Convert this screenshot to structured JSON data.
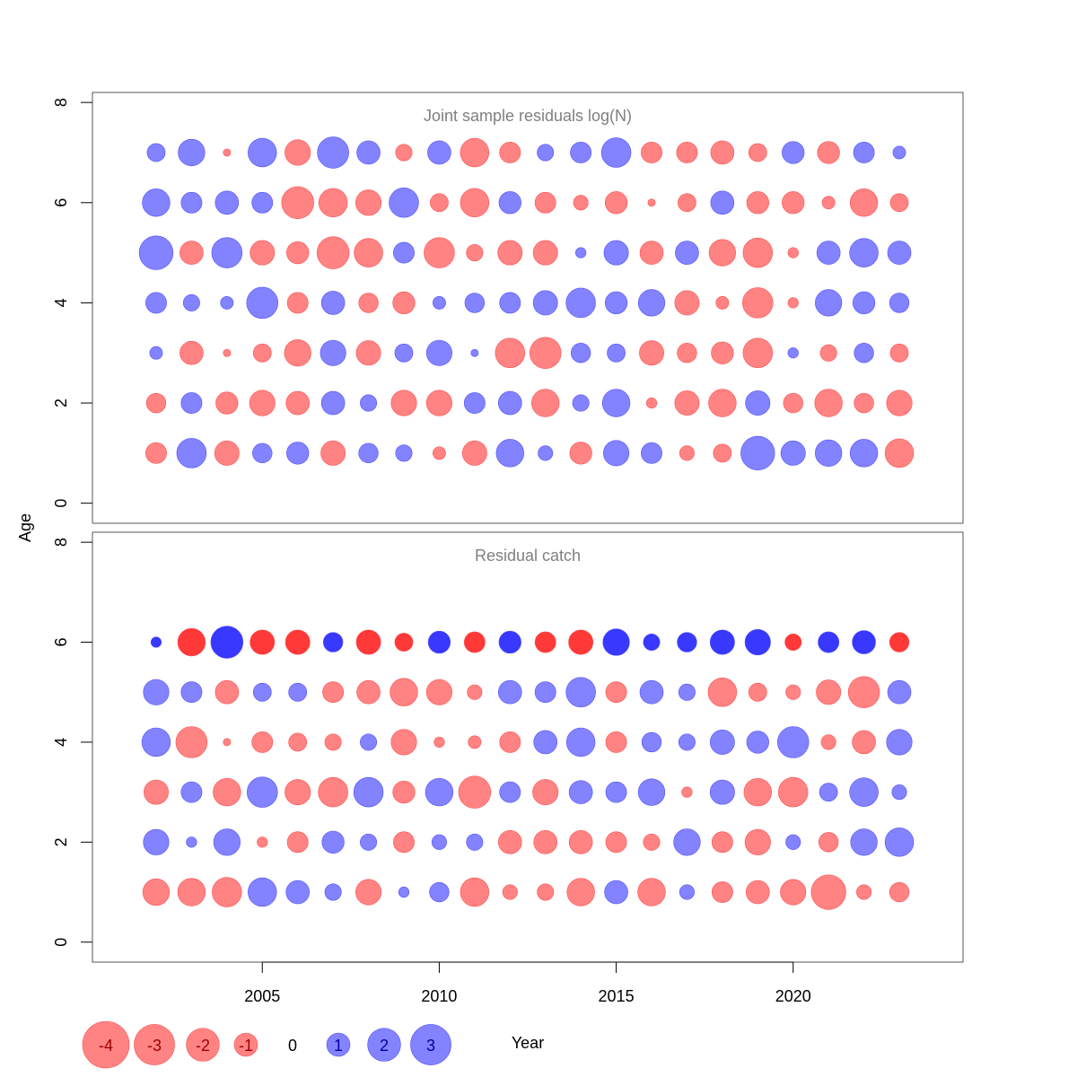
{
  "colors": {
    "negative": "#ff6464",
    "positive": "#6464ff",
    "negative_strong": "#ff2d2d",
    "positive_strong": "#2d2dff"
  },
  "chart_data": {
    "type": "scatter",
    "xlabel": "Year",
    "ylabel": "Age",
    "xlim": [
      2000.2,
      2024.8
    ],
    "x_ticks": [
      2005,
      2010,
      2015,
      2020
    ],
    "legend": {
      "placement": "bottom-left",
      "values": [
        -4,
        -3,
        -2,
        -1,
        0,
        1,
        2,
        3
      ],
      "labels": [
        "-4",
        "-3",
        "-2",
        "-1",
        "0",
        "1",
        "2",
        "3"
      ]
    },
    "years": [
      2002,
      2003,
      2004,
      2005,
      2006,
      2007,
      2008,
      2009,
      2010,
      2011,
      2012,
      2013,
      2014,
      2015,
      2016,
      2017,
      2018,
      2019,
      2020,
      2021,
      2022,
      2023
    ],
    "panels": [
      {
        "title": "Joint sample residuals log(N)",
        "ylim": [
          -0.4,
          8.2
        ],
        "y_ticks": [
          0,
          2,
          4,
          6,
          8
        ],
        "ages": [
          1,
          2,
          3,
          4,
          5,
          6,
          7
        ],
        "residuals": {
          "7": [
            0.6,
            1.3,
            -0.1,
            1.5,
            -1.2,
            1.8,
            1.0,
            -0.5,
            1.0,
            -1.5,
            -0.8,
            0.5,
            0.8,
            1.6,
            -0.8,
            -0.8,
            -1.0,
            -0.6,
            0.9,
            -0.9,
            0.8,
            0.3
          ],
          "6": [
            1.4,
            0.8,
            1.0,
            0.8,
            -1.9,
            -1.5,
            -1.2,
            1.6,
            -0.6,
            -1.5,
            0.9,
            -0.8,
            -0.4,
            -0.9,
            -0.1,
            -0.6,
            1.0,
            -0.9,
            -0.9,
            -0.3,
            -1.4,
            -0.6
          ],
          "5": [
            2.1,
            -1.0,
            1.7,
            -1.1,
            -0.9,
            -1.9,
            -1.5,
            0.8,
            -1.7,
            -0.5,
            -1.1,
            -1.1,
            0.2,
            1.1,
            -1.0,
            1.0,
            -1.3,
            -1.6,
            -0.2,
            1.0,
            1.5,
            1.0
          ],
          "4": [
            0.8,
            0.5,
            0.3,
            1.8,
            -0.8,
            1.0,
            -0.7,
            -0.9,
            0.3,
            0.7,
            0.8,
            1.1,
            1.6,
            0.9,
            1.3,
            -1.1,
            -0.3,
            -1.7,
            -0.2,
            1.3,
            0.9,
            0.7
          ],
          "3": [
            0.3,
            -1.0,
            -0.1,
            -0.6,
            -1.3,
            1.2,
            -1.1,
            0.6,
            1.2,
            0.1,
            -1.6,
            -1.8,
            0.7,
            0.6,
            -1.1,
            -0.7,
            -0.9,
            -1.6,
            0.2,
            -0.5,
            0.7,
            -0.6
          ],
          "2": [
            -0.7,
            0.8,
            -0.9,
            -1.2,
            -1.0,
            1.0,
            0.5,
            -1.2,
            -1.2,
            0.8,
            1.0,
            -1.4,
            0.5,
            1.4,
            -0.2,
            -1.1,
            -1.4,
            1.1,
            -0.7,
            -1.4,
            -0.7,
            -1.2
          ],
          "1": [
            -0.8,
            1.6,
            -1.1,
            0.7,
            0.9,
            -1.1,
            0.7,
            0.5,
            -0.3,
            -1.1,
            1.4,
            0.4,
            -0.9,
            1.2,
            0.8,
            -0.4,
            -0.6,
            2.1,
            1.1,
            1.3,
            1.4,
            -1.5
          ]
        }
      },
      {
        "title": "Residual catch",
        "ylim": [
          -0.4,
          8.2
        ],
        "y_ticks": [
          0,
          2,
          4,
          6,
          8
        ],
        "ages": [
          1,
          2,
          3,
          4,
          5,
          6
        ],
        "residuals": {
          "6": [
            0.2,
            -1.4,
            1.9,
            -1.1,
            -1.1,
            0.7,
            -1.1,
            -0.6,
            0.9,
            -0.8,
            0.9,
            -0.8,
            -1.1,
            1.3,
            0.5,
            0.7,
            1.1,
            1.2,
            -0.5,
            0.8,
            1.0,
            -0.7
          ],
          "5": [
            1.2,
            0.8,
            -1.0,
            0.6,
            0.6,
            -0.8,
            -1.0,
            -1.4,
            -1.2,
            -0.4,
            1.0,
            0.8,
            1.6,
            -0.8,
            1.0,
            0.5,
            -1.5,
            -0.6,
            -0.4,
            -1.1,
            -1.8,
            1.0
          ],
          "4": [
            1.5,
            -1.8,
            -0.1,
            -0.8,
            -0.6,
            -0.5,
            0.5,
            -1.2,
            -0.2,
            -0.3,
            -0.8,
            1.0,
            1.5,
            -0.8,
            0.7,
            0.5,
            1.1,
            0.9,
            1.8,
            -0.4,
            -1.0,
            1.2
          ],
          "3": [
            -1.1,
            0.8,
            -1.4,
            1.7,
            -1.2,
            -1.6,
            1.6,
            -0.9,
            1.4,
            -1.9,
            0.8,
            -1.2,
            1.0,
            0.8,
            1.3,
            -0.2,
            1.1,
            -1.4,
            -1.6,
            0.6,
            1.5,
            0.4
          ],
          "2": [
            1.2,
            0.2,
            1.3,
            -0.2,
            -0.8,
            0.9,
            0.5,
            -0.8,
            0.4,
            0.5,
            -1.0,
            -1.0,
            -1.0,
            -0.8,
            -0.5,
            1.3,
            -0.8,
            -1.2,
            0.4,
            -0.7,
            1.3,
            1.5
          ],
          "1": [
            -1.3,
            -1.4,
            -1.6,
            1.5,
            1.0,
            0.5,
            -1.2,
            0.2,
            0.7,
            -1.5,
            -0.4,
            -0.5,
            -1.4,
            1.0,
            -1.4,
            0.4,
            -0.8,
            -1.0,
            -1.2,
            -2.2,
            -0.4,
            -0.7
          ]
        }
      }
    ]
  }
}
